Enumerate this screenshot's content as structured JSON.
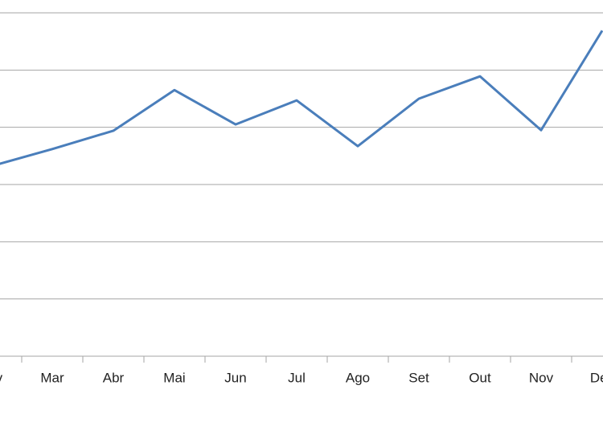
{
  "chart_data": {
    "type": "line",
    "categories": [
      "Fev",
      "Mar",
      "Abr",
      "Mai",
      "Jun",
      "Jul",
      "Ago",
      "Set",
      "Out",
      "Nov",
      "Dez"
    ],
    "series": [
      {
        "color": "#4a7ebb",
        "values": [
          3.32,
          3.62,
          3.94,
          4.65,
          4.05,
          4.47,
          3.67,
          4.5,
          4.89,
          3.95,
          5.69
        ]
      }
    ],
    "ylim": [
      0,
      6
    ],
    "yticks": [
      0,
      1,
      2,
      3,
      4,
      5,
      6
    ],
    "grid": true
  }
}
